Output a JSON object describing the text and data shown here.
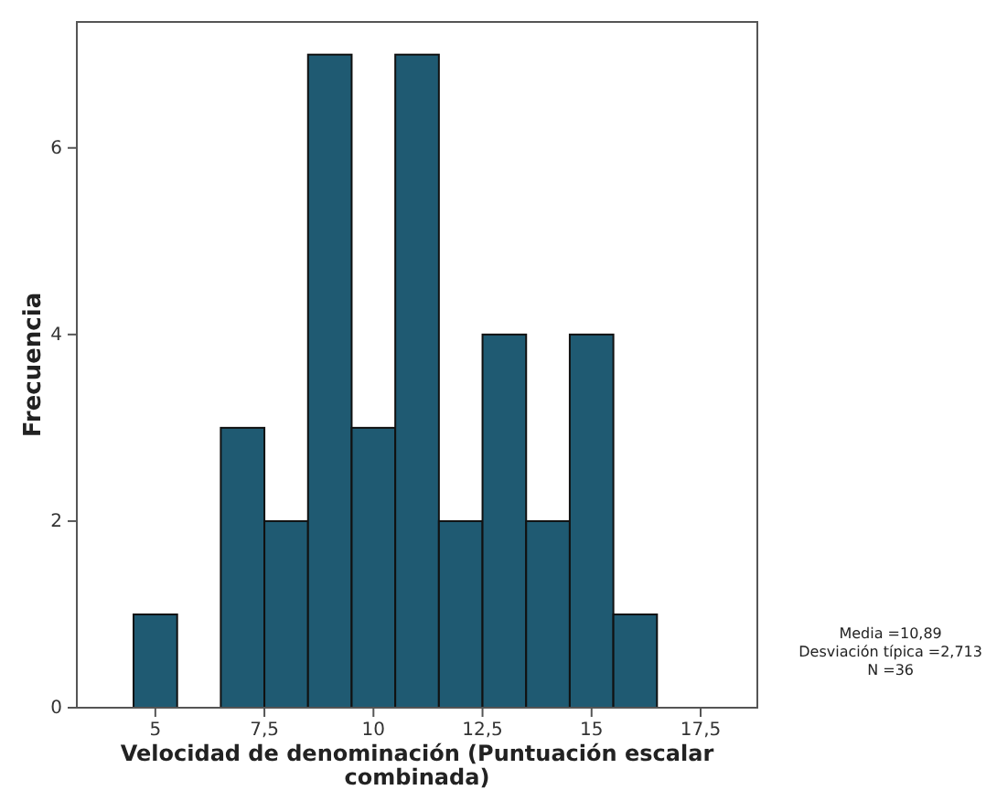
{
  "chart_data": {
    "type": "histogram",
    "xlabel": "Velocidad de denominación (Puntuación escalar combinada)",
    "ylabel": "Frecuencia",
    "bins": [
      4.5,
      5.5,
      6.5,
      7.5,
      8.5,
      9.5,
      10.5,
      11.5,
      12.5,
      13.5,
      14.5,
      15.5,
      16.5
    ],
    "values": [
      1,
      0,
      3,
      2,
      7,
      3,
      7,
      2,
      4,
      2,
      4,
      1
    ],
    "color": "#1f5a72",
    "xlim": [
      3.2,
      18.8
    ],
    "xticks": [
      5,
      {
        "value": 7.5,
        "label": "7,5"
      },
      10,
      {
        "value": 12.5,
        "label": "12,5"
      },
      15,
      {
        "value": 17.5,
        "label": "17,5"
      }
    ],
    "ylim": [
      0,
      7.35
    ],
    "yticks": [
      0,
      2,
      4,
      6
    ],
    "grid": false,
    "annotations": [
      "Media =10,89",
      "Desviación típica =2,713",
      "N =36"
    ]
  }
}
